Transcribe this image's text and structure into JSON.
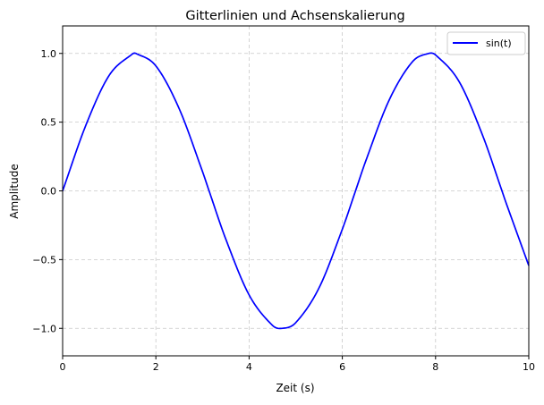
{
  "chart_data": {
    "type": "line",
    "title": "Gitterlinien und Achsenskalierung",
    "xlabel": "Zeit (s)",
    "ylabel": "Amplitude",
    "xlim": [
      0,
      10
    ],
    "ylim": [
      -1.2,
      1.2
    ],
    "xticks": [
      0,
      2,
      4,
      6,
      8,
      10
    ],
    "xtick_labels": [
      "0",
      "2",
      "4",
      "6",
      "8",
      "10"
    ],
    "yticks": [
      -1.0,
      -0.5,
      0.0,
      0.5,
      1.0
    ],
    "ytick_labels": [
      "−1.0",
      "−0.5",
      "0.0",
      "0.5",
      "1.0"
    ],
    "grid": true,
    "grid_style": "dashed",
    "legend_position": "top-right",
    "series": [
      {
        "name": "sin(t)",
        "color": "#0000ff",
        "x": [
          0.0,
          0.5,
          1.0,
          1.5,
          1.5708,
          2.0,
          2.5,
          3.0,
          3.1416,
          3.5,
          4.0,
          4.5,
          4.7124,
          5.0,
          5.5,
          6.0,
          6.2832,
          6.5,
          7.0,
          7.5,
          7.854,
          8.0,
          8.5,
          9.0,
          9.4248,
          9.5,
          10.0
        ],
        "y": [
          0.0,
          0.479,
          0.841,
          0.997,
          1.0,
          0.909,
          0.598,
          0.141,
          0.0,
          -0.351,
          -0.757,
          -0.978,
          -1.0,
          -0.959,
          -0.706,
          -0.279,
          0.0,
          0.215,
          0.657,
          0.938,
          1.0,
          0.989,
          0.798,
          0.412,
          0.0,
          -0.075,
          -0.544
        ]
      }
    ]
  }
}
